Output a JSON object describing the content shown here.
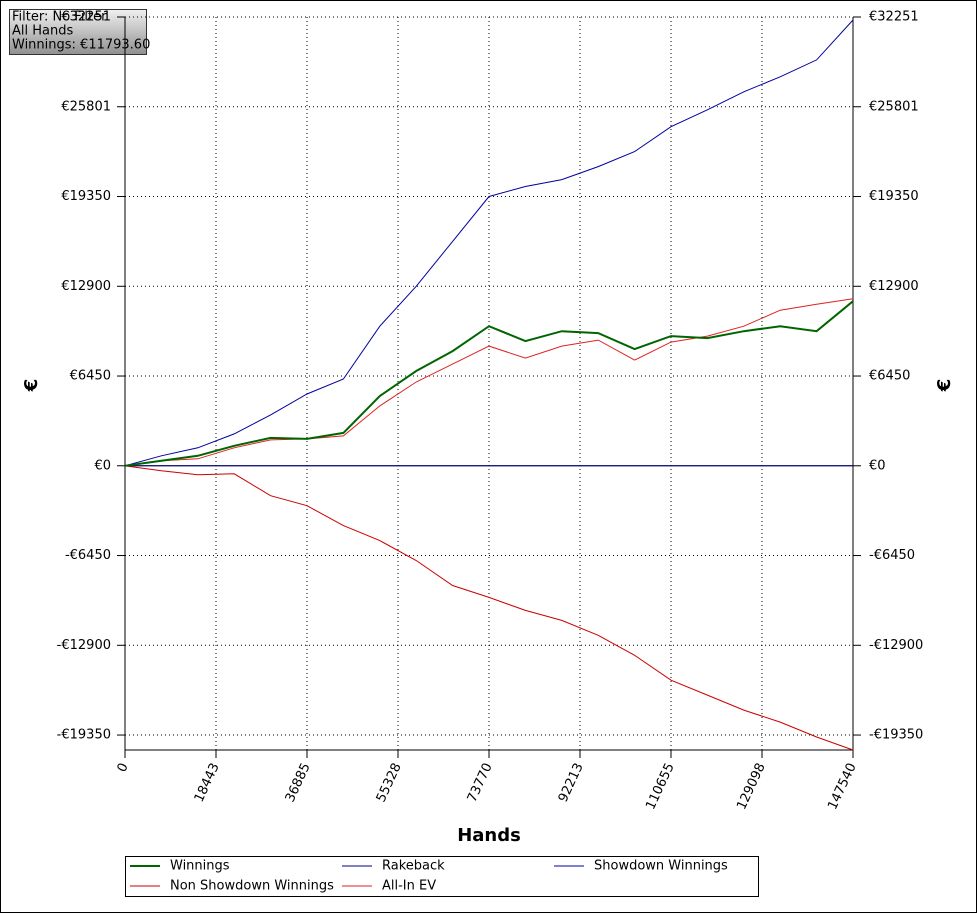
{
  "chart_data": {
    "type": "line",
    "annotations": [
      "Filter: No Filter",
      "All Hands",
      "Winnings: €11793.60"
    ],
    "xlabel": "Hands",
    "ylabel": "€",
    "y2label": "€",
    "x": [
      0,
      7377,
      14754,
      22131,
      29508,
      36885,
      44262,
      51639,
      59016,
      66393,
      73770,
      81147,
      88524,
      95901,
      103278,
      110655,
      118032,
      125409,
      132786,
      140163,
      147540
    ],
    "series": [
      {
        "name": "Winnings",
        "color": "#006400",
        "values": [
          0,
          358,
          717,
          1433,
          2007,
          1935,
          2365,
          5017,
          6808,
          8242,
          10033,
          8958,
          9675,
          9532,
          8385,
          9317,
          9175,
          9675,
          10033,
          9675,
          11825
        ]
      },
      {
        "name": "Rakeback",
        "color": "#000080",
        "values": [
          0,
          0,
          0,
          0,
          0,
          0,
          0,
          0,
          0,
          0,
          0,
          0,
          0,
          0,
          0,
          0,
          0,
          0,
          0,
          0,
          0
        ]
      },
      {
        "name": "Showdown Winnings",
        "color": "#0000a0",
        "values": [
          0,
          717,
          1290,
          2293,
          3655,
          5160,
          6235,
          10033,
          12900,
          16125,
          19350,
          20067,
          20569,
          21500,
          22575,
          24367,
          25585,
          26875,
          27950,
          29168,
          32036
        ]
      },
      {
        "name": "Non Showdown Winnings",
        "color": "#cc0000",
        "values": [
          0,
          -358,
          -645,
          -573,
          -2150,
          -2867,
          -4300,
          -5375,
          -6808,
          -8600,
          -9460,
          -10392,
          -11108,
          -12183,
          -13617,
          -15408,
          -16483,
          -17558,
          -18418,
          -19493,
          -20425
        ]
      },
      {
        "name": "All-In EV",
        "color": "#dd2222",
        "values": [
          0,
          358,
          500,
          1290,
          1863,
          1935,
          2150,
          4300,
          6020,
          7310,
          8600,
          7740,
          8600,
          9030,
          7595,
          8885,
          9317,
          10033,
          11180,
          11610,
          12000
        ]
      }
    ],
    "xlim": [
      0,
      147540
    ],
    "xticks": [
      0,
      18443,
      36885,
      55328,
      73770,
      92213,
      110655,
      129098,
      147540
    ],
    "ylim": [
      -20425,
      32251
    ],
    "yticks": [
      {
        "value": -19350,
        "label": "-€19350"
      },
      {
        "value": -12900,
        "label": "-€12900"
      },
      {
        "value": -6450,
        "label": "-€6450"
      },
      {
        "value": 0,
        "label": "€0"
      },
      {
        "value": 6450,
        "label": "€6450"
      },
      {
        "value": 12900,
        "label": "€12900"
      },
      {
        "value": 19350,
        "label": "€19350"
      },
      {
        "value": 25801,
        "label": "€25801"
      },
      {
        "value": 32251,
        "label": "€32251"
      }
    ],
    "grid": true
  }
}
